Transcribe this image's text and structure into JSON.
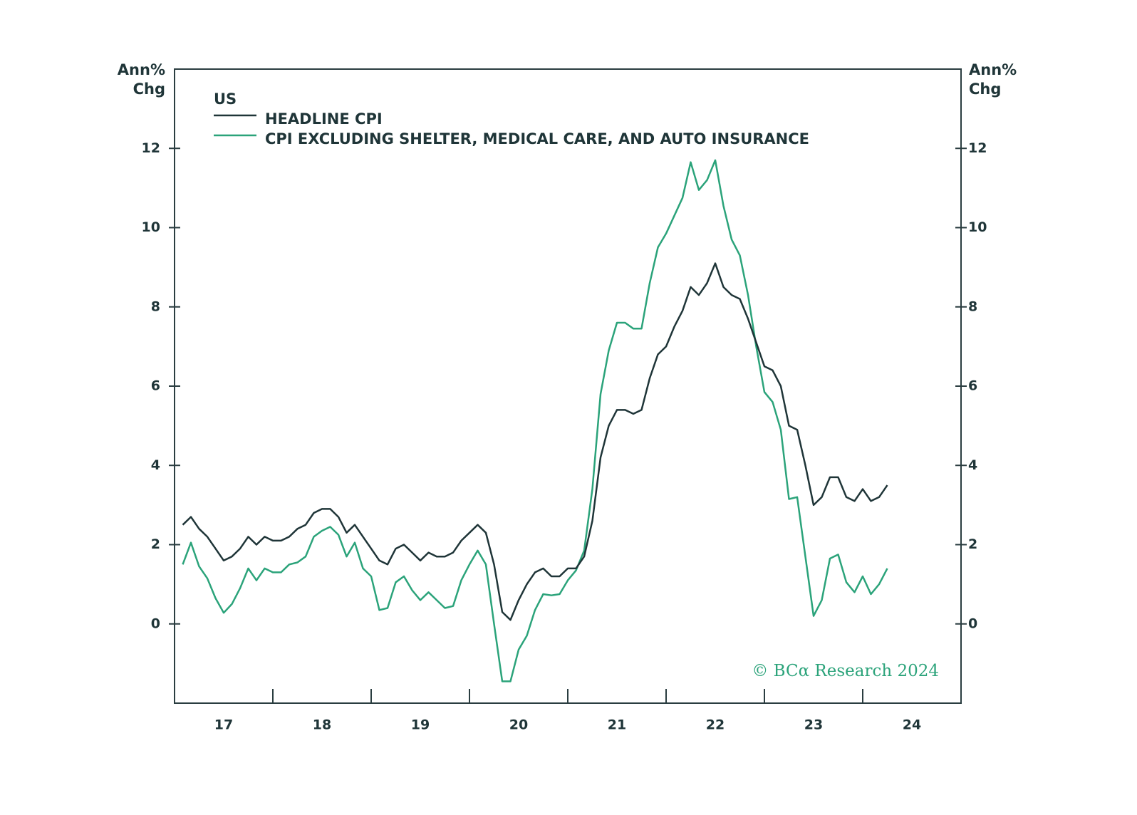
{
  "chart_data": {
    "type": "line",
    "ylabel_lines": [
      "Ann%",
      "Chg"
    ],
    "y2label_lines": [
      "Ann%",
      "Chg"
    ],
    "legend_title": "US",
    "legend": "upper left",
    "annotation": "© BCα Research 2024",
    "x": [
      2017.083,
      2017.167,
      2017.25,
      2017.333,
      2017.417,
      2017.5,
      2017.583,
      2017.667,
      2017.75,
      2017.833,
      2017.917,
      2018.0,
      2018.083,
      2018.167,
      2018.25,
      2018.333,
      2018.417,
      2018.5,
      2018.583,
      2018.667,
      2018.75,
      2018.833,
      2018.917,
      2019.0,
      2019.083,
      2019.167,
      2019.25,
      2019.333,
      2019.417,
      2019.5,
      2019.583,
      2019.667,
      2019.75,
      2019.833,
      2019.917,
      2020.0,
      2020.083,
      2020.167,
      2020.25,
      2020.333,
      2020.417,
      2020.5,
      2020.583,
      2020.667,
      2020.75,
      2020.833,
      2020.917,
      2021.0,
      2021.083,
      2021.167,
      2021.25,
      2021.333,
      2021.417,
      2021.5,
      2021.583,
      2021.667,
      2021.75,
      2021.833,
      2021.917,
      2022.0,
      2022.083,
      2022.167,
      2022.25,
      2022.333,
      2022.417,
      2022.5,
      2022.583,
      2022.667,
      2022.75,
      2022.833,
      2022.917,
      2023.0,
      2023.083,
      2023.167,
      2023.25,
      2023.333,
      2023.417,
      2023.5,
      2023.583,
      2023.667,
      2023.75,
      2023.833,
      2023.917,
      2024.0,
      2024.083,
      2024.167,
      2024.25
    ],
    "series": [
      {
        "name": "HEADLINE CPI",
        "color": "#1f3538",
        "values": [
          2.5,
          2.7,
          2.4,
          2.2,
          1.9,
          1.6,
          1.7,
          1.9,
          2.2,
          2.0,
          2.2,
          2.1,
          2.1,
          2.2,
          2.4,
          2.5,
          2.8,
          2.9,
          2.9,
          2.7,
          2.3,
          2.5,
          2.2,
          1.9,
          1.6,
          1.5,
          1.9,
          2.0,
          1.8,
          1.6,
          1.8,
          1.7,
          1.7,
          1.8,
          2.1,
          2.3,
          2.5,
          2.3,
          1.5,
          0.3,
          0.1,
          0.6,
          1.0,
          1.3,
          1.4,
          1.2,
          1.2,
          1.4,
          1.4,
          1.7,
          2.6,
          4.2,
          5.0,
          5.4,
          5.4,
          5.3,
          5.4,
          6.2,
          6.8,
          7.0,
          7.5,
          7.9,
          8.5,
          8.3,
          8.6,
          9.1,
          8.5,
          8.3,
          8.2,
          7.7,
          7.1,
          6.5,
          6.4,
          6.0,
          5.0,
          4.9,
          4.0,
          3.0,
          3.2,
          3.7,
          3.7,
          3.2,
          3.1,
          3.4,
          3.1,
          3.2,
          3.5
        ]
      },
      {
        "name": "CPI EXCLUDING SHELTER, MEDICAL CARE, AND AUTO INSURANCE",
        "color": "#2ba37a",
        "values": [
          1.5,
          2.05,
          1.45,
          1.15,
          0.65,
          0.28,
          0.5,
          0.9,
          1.4,
          1.1,
          1.4,
          1.3,
          1.3,
          1.5,
          1.55,
          1.7,
          2.2,
          2.35,
          2.45,
          2.25,
          1.7,
          2.05,
          1.4,
          1.2,
          0.35,
          0.4,
          1.05,
          1.2,
          0.85,
          0.6,
          0.8,
          0.6,
          0.4,
          0.45,
          1.1,
          1.5,
          1.85,
          1.5,
          0.0,
          -1.45,
          -1.45,
          -0.65,
          -0.3,
          0.35,
          0.75,
          0.72,
          0.75,
          1.1,
          1.35,
          1.85,
          3.4,
          5.8,
          6.9,
          7.6,
          7.6,
          7.45,
          7.45,
          8.6,
          9.5,
          9.85,
          10.3,
          10.75,
          11.65,
          10.95,
          11.2,
          11.7,
          10.55,
          9.7,
          9.3,
          8.3,
          7.0,
          5.85,
          5.6,
          4.9,
          3.15,
          3.2,
          1.7,
          0.2,
          0.6,
          1.65,
          1.75,
          1.05,
          0.8,
          1.2,
          0.75,
          1.0,
          1.4
        ]
      }
    ],
    "xlim": [
      2017,
      2025
    ],
    "xticks": [
      {
        "value": 2017.5,
        "label": "17"
      },
      {
        "value": 2018.5,
        "label": "18"
      },
      {
        "value": 2019.5,
        "label": "19"
      },
      {
        "value": 2020.5,
        "label": "20"
      },
      {
        "value": 2021.5,
        "label": "21"
      },
      {
        "value": 2022.5,
        "label": "22"
      },
      {
        "value": 2023.5,
        "label": "23"
      },
      {
        "value": 2024.5,
        "label": "24"
      }
    ],
    "xtick_marks": [
      2018,
      2019,
      2020,
      2021,
      2022,
      2023,
      2024
    ],
    "ylim": [
      -2,
      14
    ],
    "yticks": [
      0,
      2,
      4,
      6,
      8,
      10,
      12
    ],
    "y2lim": [
      -2,
      14
    ],
    "y2ticks": [
      0,
      2,
      4,
      6,
      8,
      10,
      12
    ]
  }
}
